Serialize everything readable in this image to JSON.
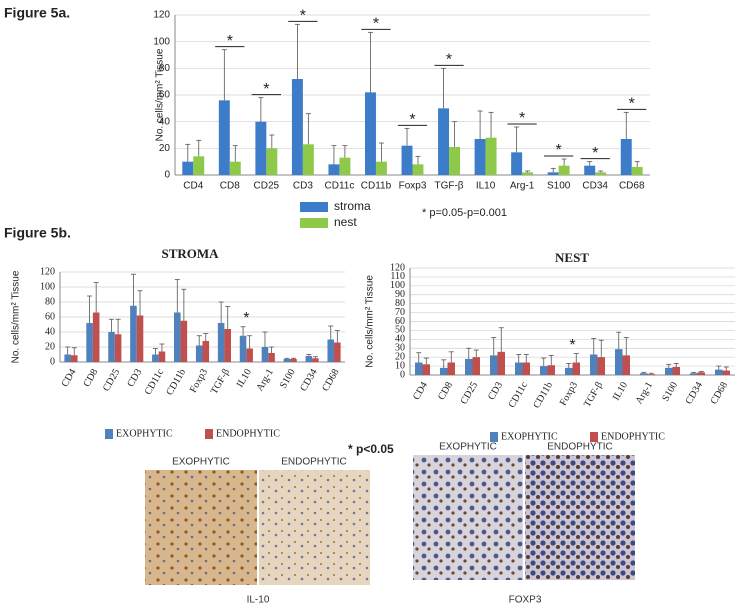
{
  "figure": {
    "label_5a": "Figure 5a.",
    "label_5b": "Figure 5b.",
    "note_5b": "* p<0.05",
    "images": [
      {
        "caption": "IL-10",
        "left": "EXOPHYTIC",
        "right": "ENDOPHYTIC"
      },
      {
        "caption": "FOXP3",
        "left": "EXOPHYTIC",
        "right": "ENDOPHYTIC"
      }
    ]
  },
  "chart_data": [
    {
      "type": "bar",
      "y_label": "No. cells/mm² Tissue",
      "note": "* p=0.05-p=0.001",
      "categories": [
        "CD4",
        "CD8",
        "CD25",
        "CD3",
        "CD11c",
        "CD11b",
        "Foxp3",
        "TGF-β",
        "IL10",
        "Arg-1",
        "S100",
        "CD34",
        "CD68"
      ],
      "series": [
        {
          "name": "stroma",
          "color": "#3d7cc9",
          "values": [
            10,
            56,
            40,
            72,
            8,
            62,
            22,
            50,
            27,
            17,
            2,
            7,
            27
          ],
          "errors": [
            13,
            38,
            18,
            41,
            14,
            45,
            13,
            30,
            21,
            19,
            3,
            3,
            20
          ]
        },
        {
          "name": "nest",
          "color": "#8fc94a",
          "values": [
            14,
            10,
            20,
            23,
            13,
            10,
            8,
            21,
            28,
            2,
            7,
            2,
            6
          ],
          "errors": [
            12,
            12,
            10,
            23,
            9,
            14,
            6,
            19,
            19,
            1,
            5,
            1,
            4
          ]
        }
      ],
      "significance": [
        null,
        "*",
        "*",
        "*",
        null,
        "*",
        "*",
        "*",
        null,
        "*",
        "*",
        "*",
        "*"
      ],
      "ylim": [
        0,
        120
      ],
      "yticks": [
        0,
        20,
        40,
        60,
        80,
        100,
        120
      ],
      "grid": true
    },
    {
      "type": "bar",
      "title": "STROMA",
      "y_label": "No. cells/mm² Tissue",
      "categories": [
        "CD4",
        "CD8",
        "CD25",
        "CD3",
        "CD11c",
        "CD11b",
        "Foxp3",
        "TGF-β",
        "IL10",
        "Arg-1",
        "S100",
        "CD34",
        "CD68"
      ],
      "series": [
        {
          "name": "EXOPHYTIC",
          "color": "#4f81bd",
          "values": [
            10,
            52,
            40,
            75,
            10,
            66,
            22,
            52,
            35,
            20,
            4,
            8,
            30
          ],
          "errors": [
            10,
            36,
            17,
            42,
            8,
            44,
            13,
            28,
            12,
            20,
            1,
            2,
            18
          ]
        },
        {
          "name": "ENDOPHYTIC",
          "color": "#c0504d",
          "values": [
            9,
            66,
            37,
            62,
            14,
            55,
            28,
            44,
            18,
            12,
            4,
            5,
            26
          ],
          "errors": [
            10,
            40,
            20,
            33,
            10,
            42,
            10,
            30,
            17,
            8,
            1,
            2,
            16
          ]
        }
      ],
      "significance": [
        null,
        null,
        null,
        null,
        null,
        null,
        null,
        null,
        "*",
        null,
        null,
        null,
        null
      ],
      "ylim": [
        0,
        120
      ],
      "yticks": [
        0,
        20,
        40,
        60,
        80,
        100,
        120
      ],
      "grid": true
    },
    {
      "type": "bar",
      "title": "NEST",
      "y_label": "No. cells/mm² Tissue",
      "categories": [
        "CD4",
        "CD8",
        "CD25",
        "CD3",
        "CD11c",
        "CD11b",
        "Foxp3",
        "TGF-β",
        "IL10",
        "Arg-1",
        "S100",
        "CD34",
        "CD68"
      ],
      "series": [
        {
          "name": "EXOPHYTIC",
          "color": "#4f81bd",
          "values": [
            14,
            8,
            18,
            22,
            14,
            10,
            8,
            23,
            29,
            2,
            8,
            2,
            6
          ],
          "errors": [
            11,
            9,
            12,
            20,
            9,
            9,
            5,
            18,
            19,
            1,
            4,
            1,
            4
          ]
        },
        {
          "name": "ENDOPHYTIC",
          "color": "#c0504d",
          "values": [
            12,
            14,
            20,
            26,
            14,
            11,
            14,
            20,
            22,
            1,
            9,
            3,
            5
          ],
          "errors": [
            7,
            12,
            8,
            27,
            9,
            11,
            10,
            19,
            20,
            1,
            4,
            1,
            4
          ]
        }
      ],
      "significance": [
        null,
        null,
        null,
        null,
        null,
        null,
        "*",
        null,
        null,
        null,
        null,
        null,
        null
      ],
      "ylim": [
        0,
        120
      ],
      "yticks": [
        0,
        10,
        20,
        30,
        40,
        50,
        60,
        70,
        80,
        90,
        100,
        110,
        120
      ],
      "grid": true
    }
  ]
}
